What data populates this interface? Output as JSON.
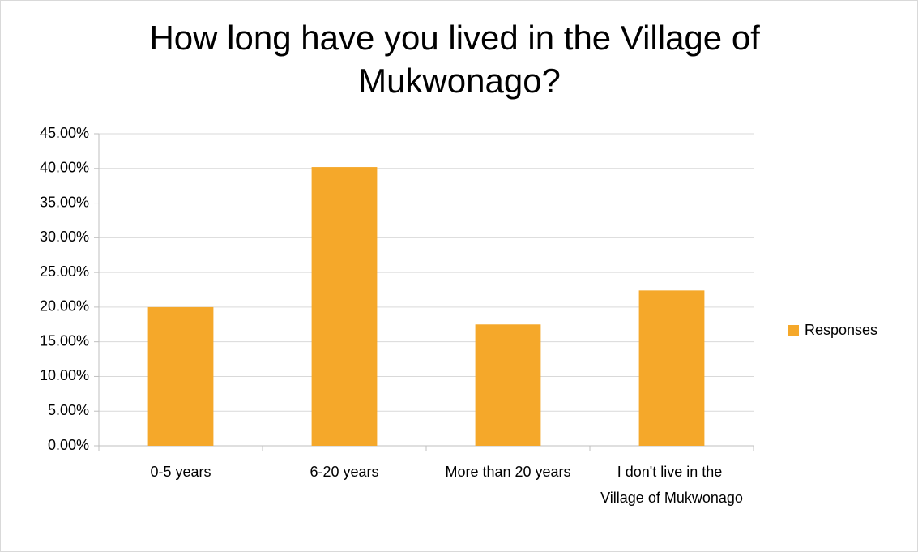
{
  "chart_data": {
    "type": "bar",
    "title": "How long have you lived in the Village of Mukwonago?",
    "categories": [
      "0-5 years",
      "6-20 years",
      "More than 20 years",
      "I don't live in the Village of Mukwonago"
    ],
    "series": [
      {
        "name": "Responses",
        "color": "#f5a82a",
        "values": [
          20,
          40.2,
          17.5,
          22.4
        ]
      }
    ],
    "ylim": [
      0,
      45
    ],
    "yticks": [
      {
        "value": 0,
        "label": "0.00%"
      },
      {
        "value": 5,
        "label": "5.00%"
      },
      {
        "value": 10,
        "label": "10.00%"
      },
      {
        "value": 15,
        "label": "15.00%"
      },
      {
        "value": 20,
        "label": "20.00%"
      },
      {
        "value": 25,
        "label": "25.00%"
      },
      {
        "value": 30,
        "label": "30.00%"
      },
      {
        "value": 35,
        "label": "35.00%"
      },
      {
        "value": 40,
        "label": "40.00%"
      },
      {
        "value": 45,
        "label": "45.00%"
      }
    ],
    "grid": true,
    "legend": "right"
  }
}
